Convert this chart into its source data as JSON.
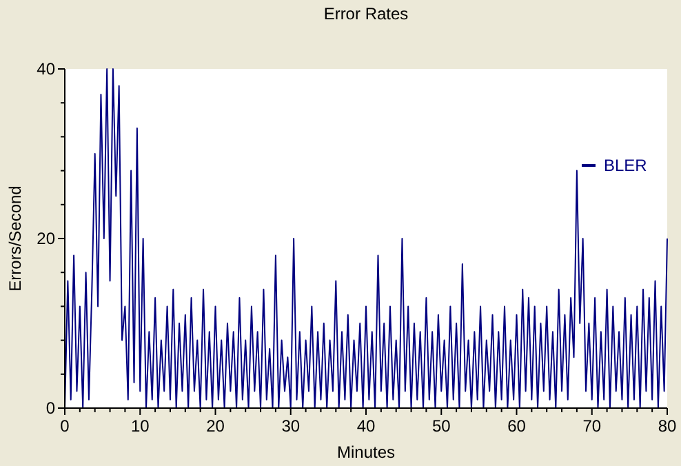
{
  "chart_data": {
    "type": "line",
    "title": "Error Rates",
    "xlabel": "Minutes",
    "ylabel": "Errors/Second",
    "xlim": [
      0,
      80
    ],
    "ylim": [
      0,
      40
    ],
    "xticks": [
      0,
      {
        "value": 2,
        "label": null
      },
      {
        "value": 4,
        "label": null
      },
      {
        "value": 6,
        "label": null
      },
      {
        "value": 8,
        "label": null
      },
      10,
      {
        "value": 12,
        "label": null
      },
      {
        "value": 14,
        "label": null
      },
      {
        "value": 16,
        "label": null
      },
      {
        "value": 18,
        "label": null
      },
      20,
      {
        "value": 22,
        "label": null
      },
      {
        "value": 24,
        "label": null
      },
      {
        "value": 26,
        "label": null
      },
      {
        "value": 28,
        "label": null
      },
      30,
      {
        "value": 32,
        "label": null
      },
      {
        "value": 34,
        "label": null
      },
      {
        "value": 36,
        "label": null
      },
      {
        "value": 38,
        "label": null
      },
      40,
      {
        "value": 42,
        "label": null
      },
      {
        "value": 44,
        "label": null
      },
      {
        "value": 46,
        "label": null
      },
      {
        "value": 48,
        "label": null
      },
      50,
      {
        "value": 52,
        "label": null
      },
      {
        "value": 54,
        "label": null
      },
      {
        "value": 56,
        "label": null
      },
      {
        "value": 58,
        "label": null
      },
      60,
      {
        "value": 62,
        "label": null
      },
      {
        "value": 64,
        "label": null
      },
      {
        "value": 66,
        "label": null
      },
      {
        "value": 68,
        "label": null
      },
      70,
      {
        "value": 72,
        "label": null
      },
      {
        "value": 74,
        "label": null
      },
      {
        "value": 76,
        "label": null
      },
      {
        "value": 78,
        "label": null
      },
      80
    ],
    "yticks": [
      0,
      {
        "value": 4,
        "label": null
      },
      {
        "value": 8,
        "label": null
      },
      {
        "value": 12,
        "label": null
      },
      {
        "value": 16,
        "label": null
      },
      20,
      {
        "value": 24,
        "label": null
      },
      {
        "value": 28,
        "label": null
      },
      {
        "value": 32,
        "label": null
      },
      {
        "value": 36,
        "label": null
      },
      40
    ],
    "legend": "top right",
    "grid": false,
    "x": [
      0,
      0.4,
      0.8,
      1.2,
      1.6,
      2,
      2.4,
      2.8,
      3.2,
      3.6,
      4,
      4.4,
      4.8,
      5.2,
      5.6,
      6,
      6.4,
      6.8,
      7.2,
      7.6,
      8,
      8.4,
      8.8,
      9.2,
      9.6,
      10,
      10.4,
      10.8,
      11.2,
      11.6,
      12,
      12.4,
      12.8,
      13.2,
      13.6,
      14,
      14.4,
      14.8,
      15.2,
      15.6,
      16,
      16.4,
      16.8,
      17.2,
      17.6,
      18,
      18.4,
      18.8,
      19.2,
      19.6,
      20,
      20.4,
      20.8,
      21.2,
      21.6,
      22,
      22.4,
      22.8,
      23.2,
      23.6,
      24,
      24.4,
      24.8,
      25.2,
      25.6,
      26,
      26.4,
      26.8,
      27.2,
      27.6,
      28,
      28.4,
      28.8,
      29.2,
      29.6,
      30,
      30.4,
      30.8,
      31.2,
      31.6,
      32,
      32.4,
      32.8,
      33.2,
      33.6,
      34,
      34.4,
      34.8,
      35.2,
      35.6,
      36,
      36.4,
      36.8,
      37.2,
      37.6,
      38,
      38.4,
      38.8,
      39.2,
      39.6,
      40,
      40.4,
      40.8,
      41.2,
      41.6,
      42,
      42.4,
      42.8,
      43.2,
      43.6,
      44,
      44.4,
      44.8,
      45.2,
      45.6,
      46,
      46.4,
      46.8,
      47.2,
      47.6,
      48,
      48.4,
      48.8,
      49.2,
      49.6,
      50,
      50.4,
      50.8,
      51.2,
      51.6,
      52,
      52.4,
      52.8,
      53.2,
      53.6,
      54,
      54.4,
      54.8,
      55.2,
      55.6,
      56,
      56.4,
      56.8,
      57.2,
      57.6,
      58,
      58.4,
      58.8,
      59.2,
      59.6,
      60,
      60.4,
      60.8,
      61.2,
      61.6,
      62,
      62.4,
      62.8,
      63.2,
      63.6,
      64,
      64.4,
      64.8,
      65.2,
      65.6,
      66,
      66.4,
      66.8,
      67.2,
      67.6,
      68,
      68.4,
      68.8,
      69.2,
      69.6,
      70,
      70.4,
      70.8,
      71.2,
      71.6,
      72,
      72.4,
      72.8,
      73.2,
      73.6,
      74,
      74.4,
      74.8,
      75.2,
      75.6,
      76,
      76.4,
      76.8,
      77.2,
      77.6,
      78,
      78.4,
      78.8,
      79.2,
      79.6,
      80
    ],
    "series": [
      {
        "name": "BLER",
        "color": "#000080",
        "values": [
          0,
          15,
          1,
          18,
          2,
          12,
          0,
          16,
          1,
          14,
          30,
          12,
          37,
          20,
          40,
          15,
          40,
          25,
          38,
          8,
          12,
          1,
          28,
          3,
          33,
          2,
          20,
          0,
          9,
          1,
          13,
          0,
          8,
          2,
          12,
          1,
          14,
          0,
          10,
          2,
          11,
          0,
          13,
          2,
          8,
          0,
          14,
          1,
          9,
          0,
          12,
          1,
          8,
          0,
          10,
          2,
          9,
          0,
          13,
          1,
          8,
          0,
          12,
          2,
          9,
          0,
          14,
          1,
          7,
          0,
          18,
          0,
          8,
          2,
          6,
          0,
          20,
          1,
          9,
          0,
          8,
          2,
          12,
          0,
          9,
          1,
          10,
          0,
          8,
          2,
          15,
          0,
          9,
          1,
          11,
          0,
          8,
          2,
          10,
          0,
          12,
          1,
          9,
          0,
          18,
          2,
          10,
          0,
          12,
          1,
          8,
          0,
          20,
          2,
          12,
          0,
          10,
          1,
          9,
          0,
          13,
          1,
          9,
          0,
          11,
          2,
          8,
          0,
          12,
          1,
          10,
          0,
          17,
          2,
          8,
          0,
          9,
          1,
          12,
          0,
          8,
          2,
          11,
          0,
          9,
          1,
          12,
          0,
          8,
          1,
          11,
          0,
          14,
          2,
          13,
          1,
          12,
          0,
          10,
          2,
          12,
          1,
          9,
          0,
          14,
          2,
          11,
          1,
          13,
          6,
          28,
          10,
          20,
          2,
          10,
          1,
          13,
          0,
          9,
          1,
          14,
          0,
          12,
          2,
          9,
          1,
          13,
          0,
          11,
          1,
          12,
          0,
          14,
          2,
          13,
          1,
          15,
          0,
          12,
          2,
          20
        ]
      }
    ]
  }
}
